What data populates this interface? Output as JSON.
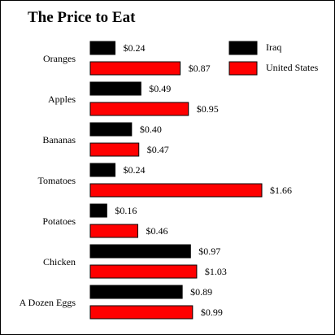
{
  "chart_data": {
    "type": "bar",
    "orientation": "horizontal",
    "title": "The Price to Eat",
    "categories": [
      "Oranges",
      "Apples",
      "Bananas",
      "Tomatoes",
      "Potatoes",
      "Chicken",
      "A Dozen Eggs"
    ],
    "series": [
      {
        "name": "Iraq",
        "color": "#000000",
        "values": [
          0.24,
          0.49,
          0.4,
          0.24,
          0.16,
          0.97,
          0.89
        ],
        "labels": [
          "$0.24",
          "$0.49",
          "$0.40",
          "$0.24",
          "$0.16",
          "$0.97",
          "$0.89"
        ]
      },
      {
        "name": "United States",
        "color": "#ff0000",
        "values": [
          0.87,
          0.95,
          0.47,
          1.66,
          0.46,
          1.03,
          0.99
        ],
        "labels": [
          "$0.87",
          "$0.95",
          "$0.47",
          "$1.66",
          "$0.46",
          "$1.03",
          "$0.99"
        ]
      }
    ],
    "xlim": [
      0,
      1.66
    ],
    "grid": false,
    "legend_position": "top-right"
  }
}
